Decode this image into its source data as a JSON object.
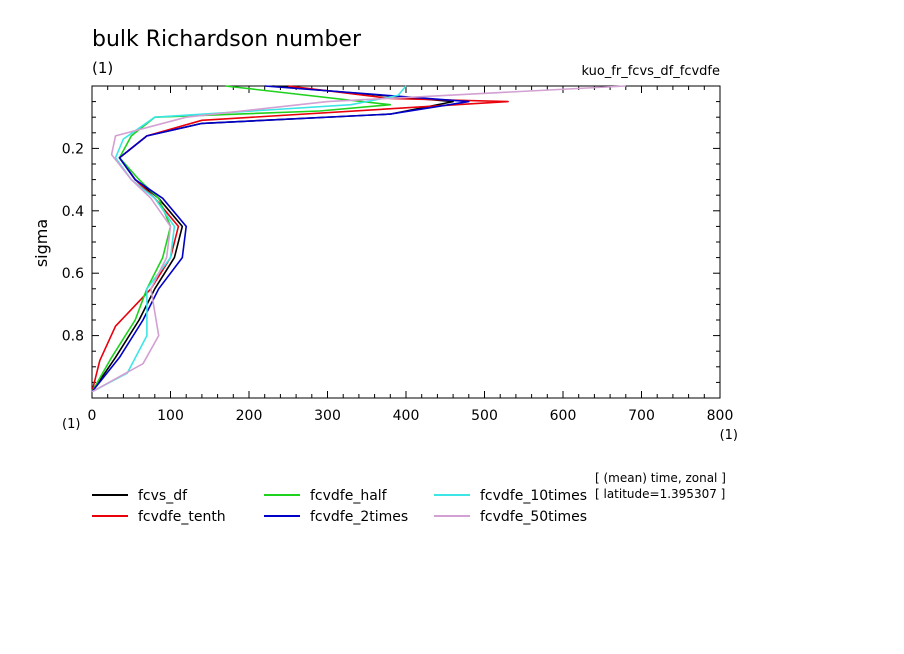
{
  "chart_data": {
    "type": "line",
    "title": "bulk Richardson number",
    "title_units": "(1)",
    "run_label": "kuo_fr_fcvs_df_fcvdfe",
    "ylabel": "sigma",
    "y_units": "(1)",
    "x_units": "(1)",
    "xlim": [
      0,
      800
    ],
    "ylim": [
      0.0,
      1.0
    ],
    "y_inverted": true,
    "x_ticks": [
      "0",
      "100",
      "200",
      "300",
      "400",
      "500",
      "600",
      "700",
      "800"
    ],
    "y_ticks": [
      "0.2",
      "0.4",
      "0.6",
      "0.8"
    ],
    "note_line1": "[ (mean) time, zonal ]",
    "note_line2": "[ latitude=1.395307 ]",
    "legend_position": "bottom",
    "series": [
      {
        "name": "fcvs_df",
        "color": "#000000",
        "x": [
          230,
          460,
          380,
          140,
          70,
          35,
          55,
          85,
          115,
          105,
          80,
          60,
          30,
          0
        ],
        "y": [
          0.0,
          0.05,
          0.09,
          0.12,
          0.16,
          0.23,
          0.3,
          0.36,
          0.45,
          0.55,
          0.65,
          0.75,
          0.87,
          0.98
        ]
      },
      {
        "name": "fcvdfe_tenth",
        "color": "#e8000b",
        "x": [
          250,
          380,
          530,
          140,
          70,
          35,
          55,
          80,
          110,
          100,
          75,
          30,
          10,
          0
        ],
        "y": [
          0.0,
          0.04,
          0.05,
          0.11,
          0.16,
          0.23,
          0.3,
          0.36,
          0.45,
          0.55,
          0.65,
          0.77,
          0.88,
          0.98
        ]
      },
      {
        "name": "fcvdfe_half",
        "color": "#1ed21e",
        "x": [
          170,
          380,
          290,
          80,
          50,
          35,
          60,
          85,
          100,
          90,
          70,
          55,
          25,
          0
        ],
        "y": [
          0.0,
          0.06,
          0.08,
          0.1,
          0.16,
          0.23,
          0.3,
          0.36,
          0.45,
          0.55,
          0.65,
          0.75,
          0.87,
          0.98
        ]
      },
      {
        "name": "fcvdfe_2times",
        "color": "#0000c8",
        "x": [
          220,
          480,
          380,
          140,
          70,
          35,
          55,
          90,
          120,
          115,
          85,
          65,
          35,
          0
        ],
        "y": [
          0.0,
          0.05,
          0.09,
          0.12,
          0.16,
          0.23,
          0.3,
          0.36,
          0.45,
          0.55,
          0.65,
          0.75,
          0.87,
          0.98
        ]
      },
      {
        "name": "fcvdfe_10times",
        "color": "#3ce6e6",
        "x": [
          400,
          390,
          330,
          80,
          40,
          30,
          50,
          80,
          105,
          100,
          70,
          70,
          45,
          0
        ],
        "y": [
          0.0,
          0.03,
          0.06,
          0.1,
          0.17,
          0.23,
          0.3,
          0.36,
          0.45,
          0.55,
          0.65,
          0.8,
          0.92,
          0.98
        ]
      },
      {
        "name": "fcvdfe_50times",
        "color": "#d2a0d2",
        "x": [
          680,
          450,
          300,
          120,
          30,
          25,
          50,
          75,
          100,
          95,
          75,
          85,
          65,
          0
        ],
        "y": [
          0.0,
          0.03,
          0.05,
          0.1,
          0.16,
          0.22,
          0.3,
          0.36,
          0.45,
          0.55,
          0.65,
          0.8,
          0.89,
          0.98
        ]
      }
    ]
  }
}
